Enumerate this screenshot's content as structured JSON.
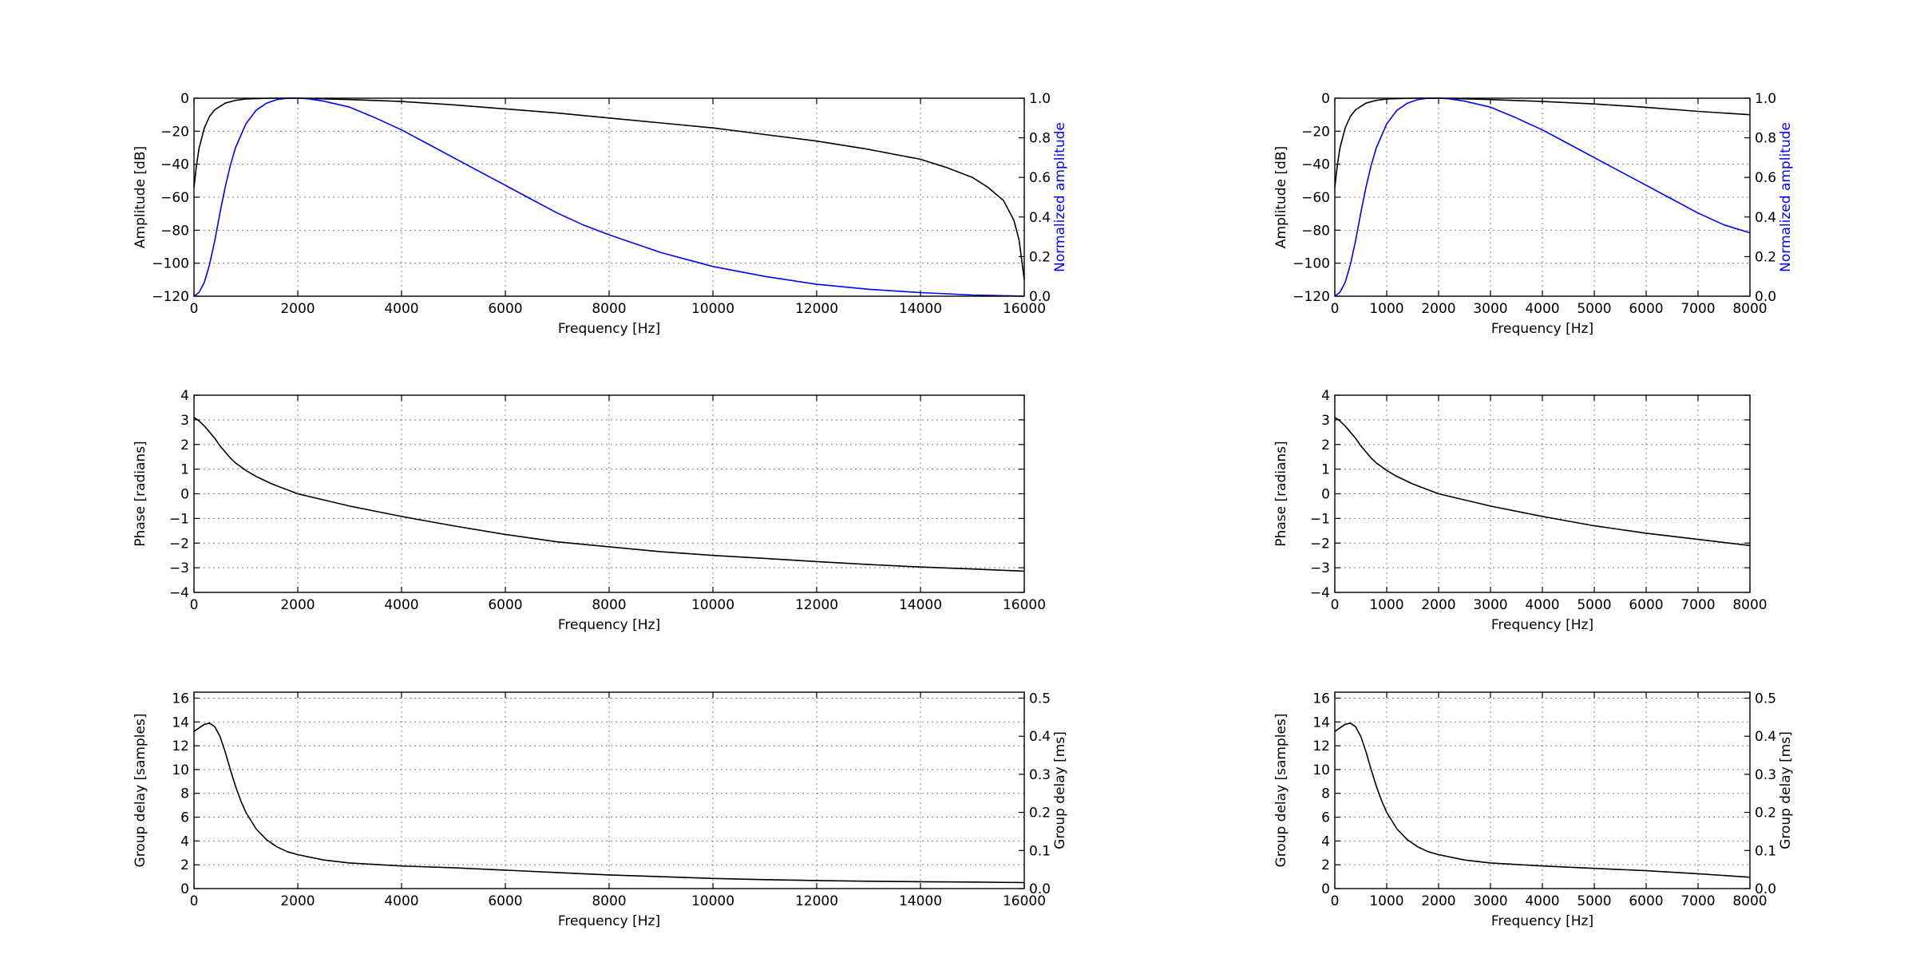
{
  "chart_data": [
    {
      "type": "line",
      "subplot": "left-amplitude",
      "xlabel": "Frequency [Hz]",
      "ylabel": "Amplitude [dB]",
      "y2label": "Normalized amplitude",
      "xlim": [
        0,
        16000
      ],
      "ylim": [
        -120,
        0
      ],
      "y2lim": [
        0,
        1
      ],
      "xticks": [
        "0",
        "2000",
        "4000",
        "6000",
        "8000",
        "10000",
        "12000",
        "14000",
        "16000"
      ],
      "yticks": [
        "−120",
        "−100",
        "−80",
        "−60",
        "−40",
        "−20",
        "0"
      ],
      "y2ticks": [
        "0.0",
        "0.2",
        "0.4",
        "0.6",
        "0.8",
        "1.0"
      ],
      "grid": true,
      "series": [
        {
          "color": "#000000",
          "axis": "left",
          "x": [
            0,
            50,
            100,
            200,
            300,
            400,
            600,
            800,
            1000,
            1500,
            2000,
            3000,
            4000,
            5000,
            6000,
            7000,
            8000,
            9000,
            10000,
            11000,
            12000,
            13000,
            14000,
            14500,
            15000,
            15300,
            15600,
            15800,
            15900,
            16000
          ],
          "y": [
            -54,
            -40,
            -30,
            -18,
            -11,
            -7,
            -3,
            -1.3,
            -0.5,
            0,
            0,
            -0.8,
            -2,
            -4,
            -6.5,
            -9,
            -12,
            -15,
            -18,
            -22,
            -26,
            -31,
            -37,
            -42,
            -48,
            -54,
            -62,
            -74,
            -86,
            -110
          ]
        },
        {
          "color": "#0000ff",
          "axis": "right",
          "x": [
            0,
            100,
            200,
            300,
            400,
            500,
            600,
            700,
            800,
            1000,
            1200,
            1400,
            1600,
            1800,
            2000,
            2200,
            2500,
            3000,
            3500,
            4000,
            4500,
            5000,
            5500,
            6000,
            6500,
            7000,
            7500,
            8000,
            9000,
            10000,
            11000,
            12000,
            13000,
            14000,
            15000,
            16000
          ],
          "y": [
            0,
            0.02,
            0.07,
            0.16,
            0.28,
            0.42,
            0.55,
            0.66,
            0.75,
            0.87,
            0.94,
            0.975,
            0.993,
            1.0,
            1.0,
            0.997,
            0.985,
            0.955,
            0.9,
            0.84,
            0.77,
            0.7,
            0.63,
            0.56,
            0.49,
            0.42,
            0.36,
            0.31,
            0.22,
            0.15,
            0.1,
            0.06,
            0.035,
            0.018,
            0.006,
            0
          ]
        }
      ]
    },
    {
      "type": "line",
      "subplot": "right-amplitude",
      "xlabel": "Frequency [Hz]",
      "ylabel": "Amplitude [dB]",
      "y2label": "Normalized amplitude",
      "xlim": [
        0,
        8000
      ],
      "ylim": [
        -120,
        0
      ],
      "y2lim": [
        0,
        1
      ],
      "xticks": [
        "0",
        "1000",
        "2000",
        "3000",
        "4000",
        "5000",
        "6000",
        "7000",
        "8000"
      ],
      "yticks": [
        "−120",
        "−100",
        "−80",
        "−60",
        "−40",
        "−20",
        "0"
      ],
      "y2ticks": [
        "0.0",
        "0.2",
        "0.4",
        "0.6",
        "0.8",
        "1.0"
      ],
      "grid": true,
      "series": [
        {
          "color": "#000000",
          "axis": "left",
          "x": [
            0,
            50,
            100,
            200,
            300,
            400,
            600,
            800,
            1000,
            1500,
            2000,
            3000,
            4000,
            5000,
            6000,
            7000,
            8000
          ],
          "y": [
            -54,
            -40,
            -30,
            -18,
            -11,
            -7,
            -3,
            -1.3,
            -0.5,
            0,
            0,
            -0.8,
            -2,
            -3.5,
            -5.5,
            -8,
            -10
          ]
        },
        {
          "color": "#0000ff",
          "axis": "right",
          "x": [
            0,
            100,
            200,
            300,
            400,
            500,
            600,
            700,
            800,
            1000,
            1200,
            1400,
            1600,
            1800,
            2000,
            2200,
            2500,
            3000,
            3500,
            4000,
            4500,
            5000,
            5500,
            6000,
            6500,
            7000,
            7500,
            8000
          ],
          "y": [
            0,
            0.02,
            0.07,
            0.16,
            0.28,
            0.42,
            0.55,
            0.66,
            0.75,
            0.87,
            0.94,
            0.975,
            0.993,
            1.0,
            1.0,
            0.997,
            0.985,
            0.955,
            0.9,
            0.84,
            0.77,
            0.7,
            0.63,
            0.56,
            0.49,
            0.42,
            0.36,
            0.32
          ]
        }
      ]
    },
    {
      "type": "line",
      "subplot": "left-phase",
      "xlabel": "Frequency [Hz]",
      "ylabel": "Phase [radians]",
      "xlim": [
        0,
        16000
      ],
      "ylim": [
        -4,
        4
      ],
      "xticks": [
        "0",
        "2000",
        "4000",
        "6000",
        "8000",
        "10000",
        "12000",
        "14000",
        "16000"
      ],
      "yticks": [
        "−4",
        "−3",
        "−2",
        "−1",
        "0",
        "1",
        "2",
        "3",
        "4"
      ],
      "grid": true,
      "series": [
        {
          "color": "#000000",
          "axis": "left",
          "x": [
            0,
            100,
            200,
            300,
            400,
            500,
            600,
            700,
            800,
            1000,
            1200,
            1500,
            2000,
            3000,
            4000,
            5000,
            6000,
            7000,
            8000,
            9000,
            10000,
            11000,
            12000,
            13000,
            14000,
            15000,
            16000
          ],
          "y": [
            3.1,
            2.95,
            2.75,
            2.5,
            2.25,
            1.95,
            1.7,
            1.45,
            1.25,
            0.95,
            0.7,
            0.4,
            0,
            -0.5,
            -0.92,
            -1.3,
            -1.65,
            -1.95,
            -2.15,
            -2.35,
            -2.5,
            -2.62,
            -2.75,
            -2.87,
            -2.97,
            -3.05,
            -3.14
          ]
        }
      ]
    },
    {
      "type": "line",
      "subplot": "right-phase",
      "xlabel": "Frequency [Hz]",
      "ylabel": "Phase [radians]",
      "xlim": [
        0,
        8000
      ],
      "ylim": [
        -4,
        4
      ],
      "xticks": [
        "0",
        "1000",
        "2000",
        "3000",
        "4000",
        "5000",
        "6000",
        "7000",
        "8000"
      ],
      "yticks": [
        "−4",
        "−3",
        "−2",
        "−1",
        "0",
        "1",
        "2",
        "3",
        "4"
      ],
      "grid": true,
      "series": [
        {
          "color": "#000000",
          "axis": "left",
          "x": [
            0,
            100,
            200,
            300,
            400,
            500,
            600,
            700,
            800,
            1000,
            1200,
            1500,
            2000,
            3000,
            4000,
            5000,
            6000,
            7000,
            8000
          ],
          "y": [
            3.1,
            2.95,
            2.75,
            2.5,
            2.25,
            1.95,
            1.7,
            1.45,
            1.25,
            0.95,
            0.7,
            0.4,
            0,
            -0.5,
            -0.92,
            -1.3,
            -1.6,
            -1.85,
            -2.1
          ]
        }
      ]
    },
    {
      "type": "line",
      "subplot": "left-group-delay",
      "xlabel": "Frequency [Hz]",
      "ylabel": "Group delay [samples]",
      "y2label": "Group delay [ms]",
      "xlim": [
        0,
        16000
      ],
      "ylim": [
        0,
        16.5
      ],
      "y2lim": [
        0,
        0.515625
      ],
      "xticks": [
        "0",
        "2000",
        "4000",
        "6000",
        "8000",
        "10000",
        "12000",
        "14000",
        "16000"
      ],
      "yticks": [
        "0",
        "2",
        "4",
        "6",
        "8",
        "10",
        "12",
        "14",
        "16"
      ],
      "y2ticks": [
        "0.0",
        "0.1",
        "0.2",
        "0.3",
        "0.4",
        "0.5"
      ],
      "grid": true,
      "series": [
        {
          "color": "#000000",
          "axis": "left",
          "x": [
            0,
            100,
            200,
            300,
            400,
            500,
            600,
            700,
            800,
            900,
            1000,
            1200,
            1400,
            1600,
            1800,
            2000,
            2500,
            3000,
            4000,
            5000,
            6000,
            7000,
            8000,
            9000,
            10000,
            11000,
            12000,
            13000,
            14000,
            15000,
            16000
          ],
          "y": [
            13.2,
            13.5,
            13.8,
            13.9,
            13.6,
            12.8,
            11.5,
            10,
            8.6,
            7.4,
            6.4,
            5,
            4.1,
            3.5,
            3.1,
            2.85,
            2.4,
            2.15,
            1.9,
            1.75,
            1.55,
            1.35,
            1.15,
            1.0,
            0.85,
            0.75,
            0.68,
            0.62,
            0.58,
            0.55,
            0.5
          ]
        }
      ]
    },
    {
      "type": "line",
      "subplot": "right-group-delay",
      "xlabel": "Frequency [Hz]",
      "ylabel": "Group delay [samples]",
      "y2label": "Group delay [ms]",
      "xlim": [
        0,
        8000
      ],
      "ylim": [
        0,
        16.5
      ],
      "y2lim": [
        0,
        0.515625
      ],
      "xticks": [
        "0",
        "1000",
        "2000",
        "3000",
        "4000",
        "5000",
        "6000",
        "7000",
        "8000"
      ],
      "yticks": [
        "0",
        "2",
        "4",
        "6",
        "8",
        "10",
        "12",
        "14",
        "16"
      ],
      "y2ticks": [
        "0.0",
        "0.1",
        "0.2",
        "0.3",
        "0.4",
        "0.5"
      ],
      "grid": true,
      "series": [
        {
          "color": "#000000",
          "axis": "left",
          "x": [
            0,
            100,
            200,
            300,
            400,
            500,
            600,
            700,
            800,
            900,
            1000,
            1200,
            1400,
            1600,
            1800,
            2000,
            2500,
            3000,
            4000,
            5000,
            6000,
            7000,
            8000
          ],
          "y": [
            13.2,
            13.5,
            13.8,
            13.9,
            13.6,
            12.8,
            11.5,
            10,
            8.6,
            7.4,
            6.4,
            5,
            4.1,
            3.5,
            3.1,
            2.85,
            2.4,
            2.15,
            1.9,
            1.7,
            1.5,
            1.25,
            0.95
          ]
        }
      ]
    }
  ]
}
